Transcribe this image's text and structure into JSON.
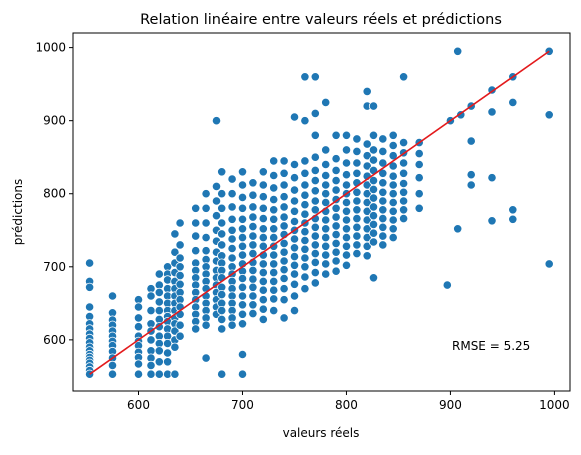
{
  "chart_data": {
    "type": "scatter",
    "title": "Relation linéaire entre valeurs réels et prédictions",
    "xlabel": "valeurs réels",
    "ylabel": "prédictions",
    "xlim": [
      537,
      1015
    ],
    "ylim": [
      530,
      1020
    ],
    "xticks": [
      "600",
      "700",
      "800",
      "900",
      "1000"
    ],
    "yticks": [
      "600",
      "700",
      "800",
      "900",
      "1000"
    ],
    "grid": false,
    "annotation": "RMSE = 5.25",
    "colors": {
      "points": "#1f77b4",
      "point_edge": "#ffffff",
      "line": "#e31a1c"
    },
    "reference_line": {
      "x": [
        553,
        995
      ],
      "y": [
        553,
        995
      ]
    },
    "points_columns": [
      {
        "x": 553,
        "y": [
          705,
          680,
          672,
          645,
          632,
          622,
          615,
          608,
          602,
          596,
          590,
          585,
          580,
          576,
          572,
          568,
          563,
          558,
          553
        ]
      },
      {
        "x": 575,
        "y": [
          660,
          637,
          627,
          620,
          612,
          605,
          598,
          592,
          584,
          575,
          565,
          553
        ]
      },
      {
        "x": 600,
        "y": [
          655,
          645,
          630,
          618,
          605,
          598,
          592,
          583,
          576,
          567,
          553
        ]
      },
      {
        "x": 612,
        "y": [
          670,
          660,
          640,
          622,
          612,
          600,
          585,
          575,
          565,
          553
        ]
      },
      {
        "x": 620,
        "y": [
          690,
          675,
          665,
          652,
          640,
          628,
          618,
          605,
          595,
          585,
          570,
          553
        ]
      },
      {
        "x": 628,
        "y": [
          700,
          690,
          682,
          670,
          660,
          650,
          640,
          632,
          625,
          615,
          605,
          595,
          582,
          570,
          553
        ]
      },
      {
        "x": 635,
        "y": [
          745,
          720,
          705,
          692,
          680,
          670,
          660,
          650,
          640,
          630,
          622,
          612,
          600,
          590,
          553
        ]
      },
      {
        "x": 640,
        "y": [
          760,
          730,
          712,
          700,
          688,
          676,
          665,
          655,
          645,
          635,
          620,
          605
        ]
      },
      {
        "x": 655,
        "y": [
          780,
          760,
          742,
          722,
          705,
          695,
          685,
          675,
          665,
          655,
          645,
          635,
          625,
          615
        ]
      },
      {
        "x": 665,
        "y": [
          800,
          780,
          760,
          740,
          722,
          710,
          700,
          690,
          680,
          670,
          660,
          650,
          640,
          630,
          620,
          575
        ]
      },
      {
        "x": 675,
        "y": [
          900,
          810,
          790,
          770,
          750,
          735,
          720,
          708,
          695,
          685,
          675,
          665,
          655,
          645,
          635
        ]
      },
      {
        "x": 680,
        "y": [
          830,
          800,
          780,
          760,
          745,
          730,
          715,
          705,
          695,
          685,
          672,
          662,
          650,
          640,
          628,
          615,
          553
        ]
      },
      {
        "x": 690,
        "y": [
          820,
          800,
          782,
          765,
          750,
          738,
          725,
          712,
          700,
          690,
          680,
          670,
          660,
          650,
          640,
          630,
          620
        ]
      },
      {
        "x": 700,
        "y": [
          830,
          812,
          795,
          780,
          765,
          752,
          740,
          728,
          716,
          704,
          694,
          684,
          672,
          660,
          648,
          635,
          622,
          580,
          553
        ]
      },
      {
        "x": 710,
        "y": [
          815,
          798,
          782,
          768,
          755,
          742,
          730,
          718,
          706,
          695,
          683,
          672,
          660,
          648,
          636
        ]
      },
      {
        "x": 720,
        "y": [
          830,
          812,
          796,
          780,
          766,
          752,
          740,
          728,
          716,
          704,
          692,
          680,
          668,
          655,
          642,
          628
        ]
      },
      {
        "x": 730,
        "y": [
          845,
          825,
          808,
          792,
          778,
          765,
          752,
          740,
          728,
          716,
          704,
          692,
          680,
          668,
          656,
          640
        ]
      },
      {
        "x": 740,
        "y": [
          845,
          828,
          812,
          796,
          782,
          768,
          756,
          744,
          732,
          720,
          708,
          696,
          684,
          670,
          655,
          630
        ]
      },
      {
        "x": 750,
        "y": [
          905,
          840,
          822,
          805,
          790,
          776,
          762,
          750,
          738,
          726,
          714,
          702,
          690,
          676,
          660,
          640
        ]
      },
      {
        "x": 760,
        "y": [
          960,
          900,
          845,
          828,
          812,
          798,
          785,
          772,
          760,
          748,
          736,
          724,
          712,
          700,
          686,
          670
        ]
      },
      {
        "x": 770,
        "y": [
          960,
          910,
          880,
          850,
          832,
          818,
          804,
          790,
          778,
          766,
          754,
          742,
          730,
          718,
          706,
          692,
          678
        ]
      },
      {
        "x": 780,
        "y": [
          925,
          860,
          840,
          825,
          812,
          800,
          788,
          776,
          764,
          752,
          740,
          728,
          716,
          704,
          690
        ]
      },
      {
        "x": 790,
        "y": [
          880,
          848,
          832,
          818,
          805,
          792,
          780,
          768,
          756,
          744,
          732,
          720,
          708,
          694
        ]
      },
      {
        "x": 800,
        "y": [
          880,
          860,
          842,
          826,
          812,
          800,
          788,
          776,
          764,
          752,
          740,
          728,
          716,
          702
        ]
      },
      {
        "x": 810,
        "y": [
          875,
          858,
          842,
          828,
          815,
          802,
          790,
          778,
          766,
          754,
          742,
          730,
          718
        ]
      },
      {
        "x": 820,
        "y": [
          940,
          920,
          868,
          852,
          838,
          824,
          812,
          800,
          788,
          776,
          764,
          752,
          740,
          728,
          715
        ]
      },
      {
        "x": 826,
        "y": [
          920,
          880,
          860,
          846,
          832,
          818,
          806,
          794,
          782,
          770,
          758,
          746,
          734,
          685
        ]
      },
      {
        "x": 835,
        "y": [
          875,
          858,
          842,
          828,
          815,
          802,
          790,
          778,
          766,
          754,
          742,
          730
        ]
      },
      {
        "x": 845,
        "y": [
          880,
          866,
          852,
          838,
          824,
          812,
          800,
          788,
          776,
          764,
          752,
          740
        ]
      },
      {
        "x": 855,
        "y": [
          960,
          870,
          856,
          842,
          828,
          814,
          802,
          790,
          778,
          766
        ]
      },
      {
        "x": 870,
        "y": [
          870,
          855,
          840,
          822,
          800,
          780
        ]
      }
    ],
    "points_extra": [
      {
        "x": 897,
        "y": 675
      },
      {
        "x": 900,
        "y": 900
      },
      {
        "x": 907,
        "y": 995
      },
      {
        "x": 907,
        "y": 752
      },
      {
        "x": 910,
        "y": 908
      },
      {
        "x": 920,
        "y": 920
      },
      {
        "x": 920,
        "y": 872
      },
      {
        "x": 920,
        "y": 826
      },
      {
        "x": 920,
        "y": 812
      },
      {
        "x": 940,
        "y": 942
      },
      {
        "x": 940,
        "y": 912
      },
      {
        "x": 940,
        "y": 822
      },
      {
        "x": 940,
        "y": 763
      },
      {
        "x": 960,
        "y": 960
      },
      {
        "x": 960,
        "y": 925
      },
      {
        "x": 960,
        "y": 778
      },
      {
        "x": 960,
        "y": 765
      },
      {
        "x": 995,
        "y": 995
      },
      {
        "x": 995,
        "y": 908
      },
      {
        "x": 995,
        "y": 704
      }
    ]
  }
}
